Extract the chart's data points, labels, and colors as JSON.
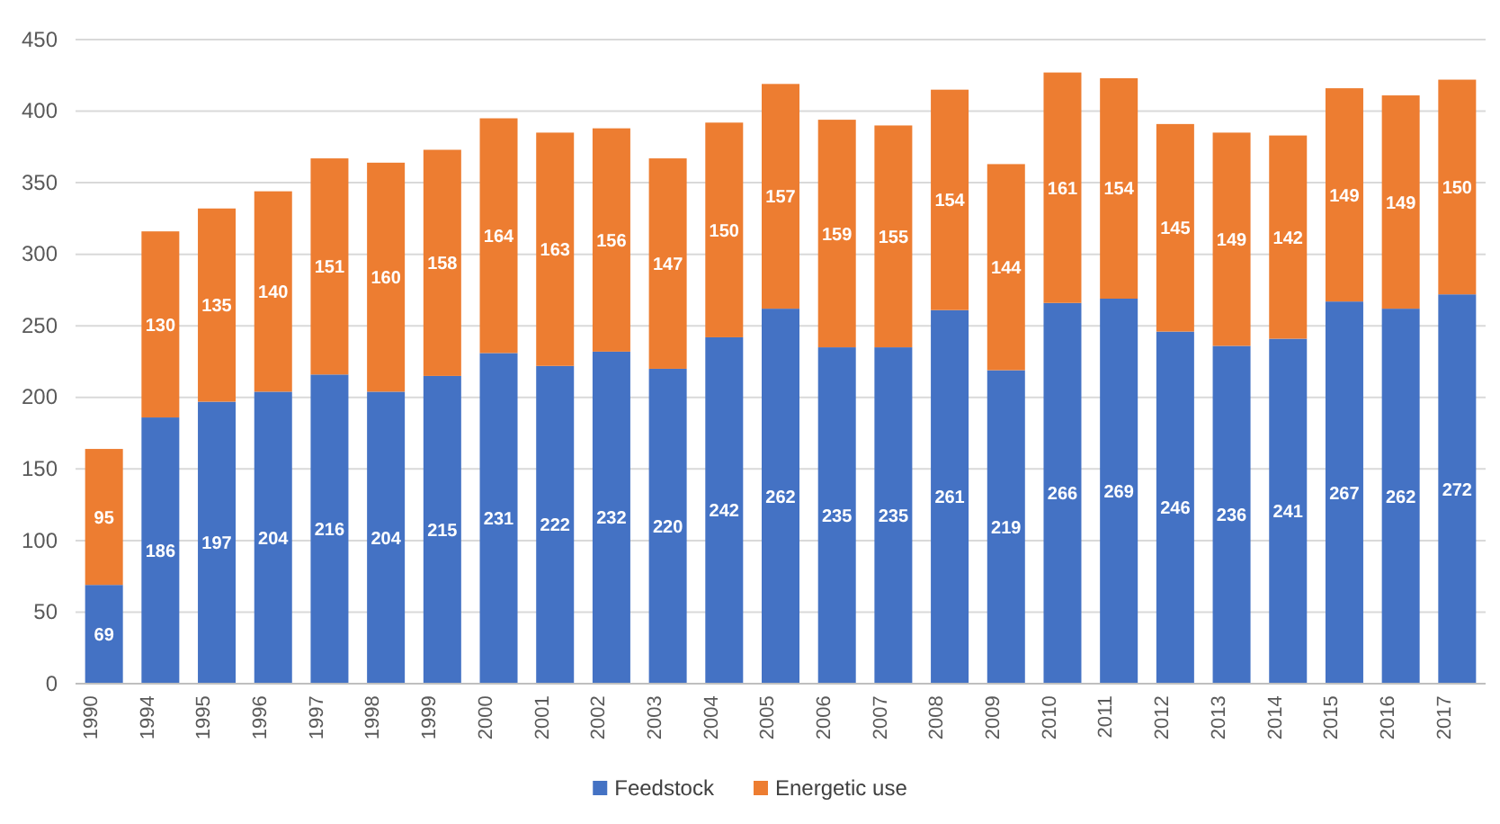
{
  "chart_data": {
    "type": "bar",
    "stacked": true,
    "categories": [
      "1990",
      "1994",
      "1995",
      "1996",
      "1997",
      "1998",
      "1999",
      "2000",
      "2001",
      "2002",
      "2003",
      "2004",
      "2005",
      "2006",
      "2007",
      "2008",
      "2009",
      "2010",
      "2011",
      "2012",
      "2013",
      "2014",
      "2015",
      "2016",
      "2017"
    ],
    "series": [
      {
        "name": "Feedstock",
        "color": "#4472c4",
        "values": [
          69,
          186,
          197,
          204,
          216,
          204,
          215,
          231,
          222,
          232,
          220,
          242,
          262,
          235,
          235,
          261,
          219,
          266,
          269,
          246,
          236,
          241,
          267,
          262,
          272
        ]
      },
      {
        "name": "Energetic use",
        "color": "#ed7d31",
        "values": [
          95,
          130,
          135,
          140,
          151,
          160,
          158,
          164,
          163,
          156,
          147,
          150,
          157,
          159,
          155,
          154,
          144,
          161,
          154,
          145,
          149,
          142,
          149,
          149,
          150
        ]
      }
    ],
    "ylim": [
      0,
      450
    ],
    "yticks": [
      0,
      50,
      100,
      150,
      200,
      250,
      300,
      350,
      400,
      450
    ],
    "grid": "y",
    "legend": "bottom",
    "data_labels": true
  }
}
